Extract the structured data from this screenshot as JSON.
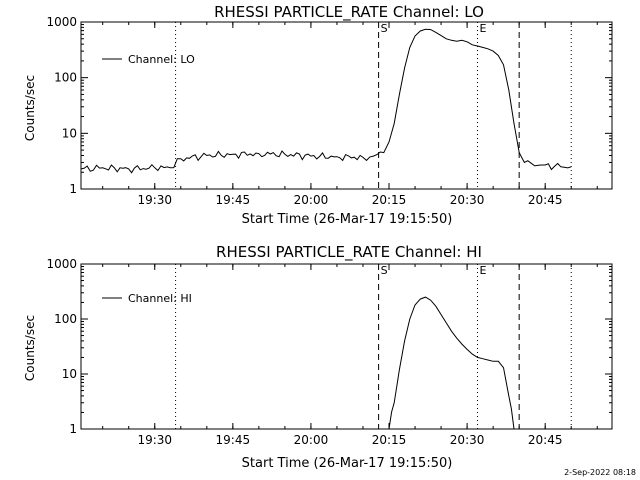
{
  "chart_data": [
    {
      "type": "line",
      "title": "RHESSI PARTICLE_RATE Channel: LO",
      "xlabel": "Start Time (26-Mar-17 19:15:50)",
      "ylabel": "Counts/sec",
      "y_scale": "log",
      "ylim": [
        1,
        1000
      ],
      "y_ticks": [
        "1",
        "10",
        "100",
        "1000"
      ],
      "x_ticks": [
        "19:30",
        "19:45",
        "20:00",
        "20:15",
        "20:30",
        "20:45"
      ],
      "xlim_minutes_after_19_15_50": [
        0,
        102
      ],
      "legend": {
        "label": "Channel: LO",
        "placement": "top-left"
      },
      "markers": [
        {
          "label": "S",
          "time": "20:13",
          "style": "dashed"
        },
        {
          "label": "E",
          "time": "20:32",
          "style": "dotted"
        }
      ],
      "vlines": [
        {
          "time": "19:34",
          "style": "dotted"
        },
        {
          "time": "20:40",
          "style": "dashed"
        },
        {
          "time": "20:50",
          "style": "dotted"
        }
      ],
      "series": [
        {
          "name": "Channel: LO",
          "points": [
            [
              "19:15:50",
              2.3
            ],
            [
              "19:20",
              2.4
            ],
            [
              "19:25",
              2.3
            ],
            [
              "19:30",
              2.4
            ],
            [
              "19:33",
              2.4
            ],
            [
              "19:35",
              3.5
            ],
            [
              "19:40",
              4.0
            ],
            [
              "19:45",
              4.2
            ],
            [
              "19:50",
              4.3
            ],
            [
              "19:55",
              4.2
            ],
            [
              "20:00",
              3.9
            ],
            [
              "20:05",
              3.8
            ],
            [
              "20:10",
              3.7
            ],
            [
              "20:12",
              3.9
            ],
            [
              "20:14",
              4.5
            ],
            [
              "20:15",
              7
            ],
            [
              "20:16",
              15
            ],
            [
              "20:17",
              50
            ],
            [
              "20:18",
              150
            ],
            [
              "20:19",
              350
            ],
            [
              "20:20",
              560
            ],
            [
              "20:21",
              690
            ],
            [
              "20:22",
              740
            ],
            [
              "20:23",
              730
            ],
            [
              "20:24",
              650
            ],
            [
              "20:25",
              570
            ],
            [
              "20:26",
              500
            ],
            [
              "20:27",
              470
            ],
            [
              "20:28",
              450
            ],
            [
              "20:29",
              470
            ],
            [
              "20:30",
              440
            ],
            [
              "20:31",
              390
            ],
            [
              "20:32",
              370
            ],
            [
              "20:33",
              350
            ],
            [
              "20:34",
              330
            ],
            [
              "20:35",
              300
            ],
            [
              "20:36",
              250
            ],
            [
              "20:37",
              170
            ],
            [
              "20:38",
              60
            ],
            [
              "20:39",
              15
            ],
            [
              "20:40",
              4.5
            ],
            [
              "20:41",
              3.0
            ],
            [
              "20:43",
              2.6
            ],
            [
              "20:45",
              2.7
            ],
            [
              "20:48",
              2.5
            ],
            [
              "20:50",
              2.5
            ]
          ]
        }
      ]
    },
    {
      "type": "line",
      "title": "RHESSI PARTICLE_RATE Channel: HI",
      "xlabel": "Start Time (26-Mar-17 19:15:50)",
      "ylabel": "Counts/sec",
      "y_scale": "log",
      "ylim": [
        1,
        1000
      ],
      "y_ticks": [
        "1",
        "10",
        "100",
        "1000"
      ],
      "x_ticks": [
        "19:30",
        "19:45",
        "20:00",
        "20:15",
        "20:30",
        "20:45"
      ],
      "xlim_minutes_after_19_15_50": [
        0,
        102
      ],
      "legend": {
        "label": "Channel: HI",
        "placement": "top-left"
      },
      "markers": [
        {
          "label": "S",
          "time": "20:13",
          "style": "dashed"
        },
        {
          "label": "E",
          "time": "20:32",
          "style": "dotted"
        }
      ],
      "vlines": [
        {
          "time": "19:34",
          "style": "dotted"
        },
        {
          "time": "20:40",
          "style": "dashed"
        },
        {
          "time": "20:50",
          "style": "dotted"
        }
      ],
      "series": [
        {
          "name": "Channel: HI",
          "points": [
            [
              "20:15",
              1.0
            ],
            [
              "20:16",
              3
            ],
            [
              "20:17",
              12
            ],
            [
              "20:18",
              40
            ],
            [
              "20:19",
              100
            ],
            [
              "20:20",
              180
            ],
            [
              "20:21",
              230
            ],
            [
              "20:22",
              250
            ],
            [
              "20:23",
              220
            ],
            [
              "20:24",
              170
            ],
            [
              "20:25",
              120
            ],
            [
              "20:26",
              85
            ],
            [
              "20:27",
              60
            ],
            [
              "20:28",
              45
            ],
            [
              "20:29",
              35
            ],
            [
              "20:30",
              28
            ],
            [
              "20:31",
              23
            ],
            [
              "20:32",
              20
            ],
            [
              "20:33",
              19
            ],
            [
              "20:34",
              18
            ],
            [
              "20:35",
              17
            ],
            [
              "20:36",
              17
            ],
            [
              "20:37",
              13
            ],
            [
              "20:38",
              4
            ],
            [
              "20:39",
              1.0
            ]
          ]
        }
      ]
    }
  ],
  "footer": {
    "timestamp": "2-Sep-2022 08:18"
  }
}
